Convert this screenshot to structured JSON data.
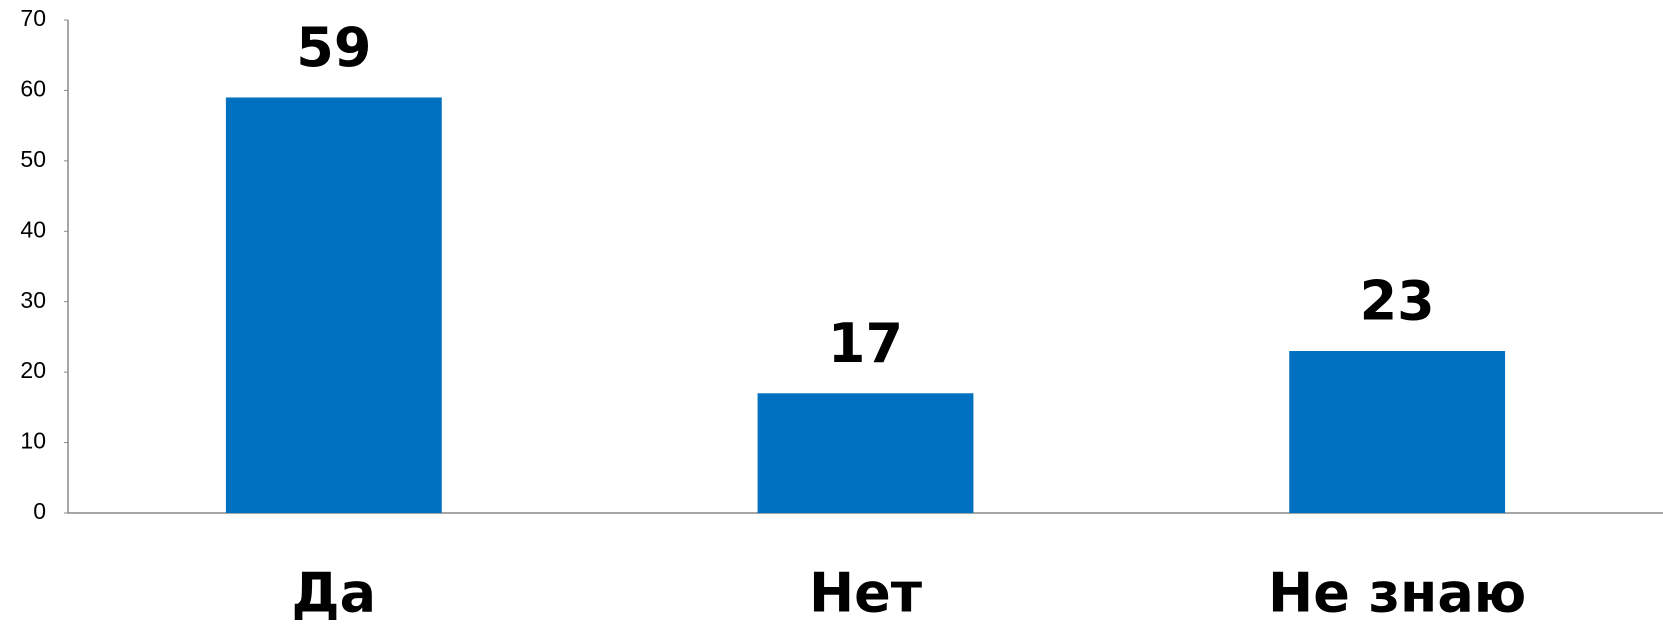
{
  "chart_data": {
    "type": "bar",
    "categories": [
      "Да",
      "Нет",
      "Не знаю"
    ],
    "values": [
      59,
      17,
      23
    ],
    "color": "#0070c0",
    "ylim": [
      0,
      70
    ],
    "yticks": [
      0,
      10,
      20,
      30,
      40,
      50,
      60,
      70
    ],
    "grid": false
  }
}
